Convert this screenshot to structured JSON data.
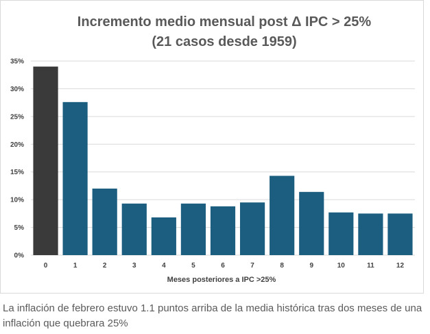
{
  "chart_data": {
    "type": "bar",
    "title_lines": [
      "Incremento medio mensual post Δ IPC > 25%",
      "(21 casos desde 1959)"
    ],
    "xlabel": "Meses posteriores a IPC >25%",
    "ylabel": "",
    "categories": [
      "0",
      "1",
      "2",
      "3",
      "4",
      "5",
      "6",
      "7",
      "8",
      "9",
      "10",
      "11",
      "12"
    ],
    "values": [
      34.0,
      27.6,
      12.0,
      9.3,
      6.8,
      9.3,
      8.8,
      9.5,
      14.3,
      11.4,
      7.7,
      7.5,
      7.5
    ],
    "bar_colors": [
      "#3a3a3a",
      "#1b5e7f",
      "#1b5e7f",
      "#1b5e7f",
      "#1b5e7f",
      "#1b5e7f",
      "#1b5e7f",
      "#1b5e7f",
      "#1b5e7f",
      "#1b5e7f",
      "#1b5e7f",
      "#1b5e7f",
      "#1b5e7f"
    ],
    "ylim": [
      0,
      35
    ],
    "yticks": [
      0,
      5,
      10,
      15,
      20,
      25,
      30,
      35
    ],
    "ytick_labels": [
      "0%",
      "5%",
      "10%",
      "15%",
      "20%",
      "25%",
      "30%",
      "35%"
    ],
    "grid": true,
    "legend": "none"
  },
  "caption": "La inflación de febrero estuvo 1.1 puntos arriba de la media histórica tras dos meses de una inflación que quebrara 25%"
}
